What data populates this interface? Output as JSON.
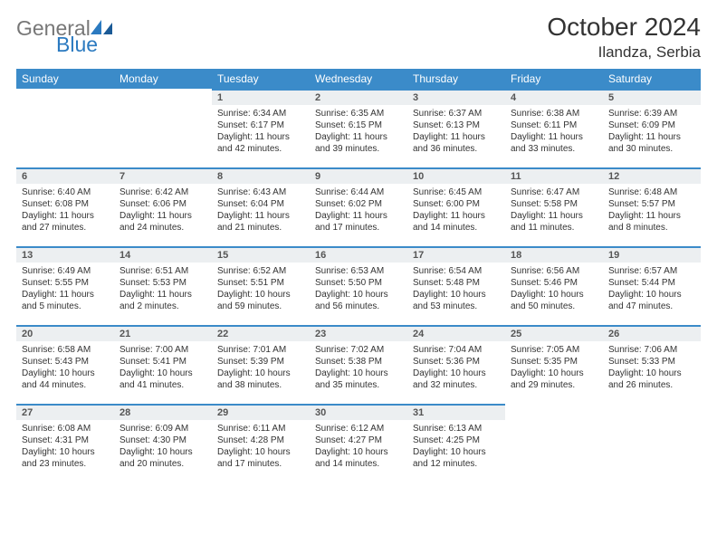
{
  "brand": {
    "word1": "General",
    "word2": "Blue",
    "word1_color": "#777777",
    "word2_color": "#2b7ac0"
  },
  "title": {
    "month_year": "October 2024",
    "location": "Ilandza, Serbia"
  },
  "colors": {
    "header_bg": "#3b8bc9",
    "daynum_bg": "#eceff1",
    "border": "#3b8bc9",
    "text": "#333333"
  },
  "day_names": [
    "Sunday",
    "Monday",
    "Tuesday",
    "Wednesday",
    "Thursday",
    "Friday",
    "Saturday"
  ],
  "weeks": [
    [
      {
        "num": "",
        "sunrise": "",
        "sunset": "",
        "daylight": ""
      },
      {
        "num": "",
        "sunrise": "",
        "sunset": "",
        "daylight": ""
      },
      {
        "num": "1",
        "sunrise": "Sunrise: 6:34 AM",
        "sunset": "Sunset: 6:17 PM",
        "daylight": "Daylight: 11 hours and 42 minutes."
      },
      {
        "num": "2",
        "sunrise": "Sunrise: 6:35 AM",
        "sunset": "Sunset: 6:15 PM",
        "daylight": "Daylight: 11 hours and 39 minutes."
      },
      {
        "num": "3",
        "sunrise": "Sunrise: 6:37 AM",
        "sunset": "Sunset: 6:13 PM",
        "daylight": "Daylight: 11 hours and 36 minutes."
      },
      {
        "num": "4",
        "sunrise": "Sunrise: 6:38 AM",
        "sunset": "Sunset: 6:11 PM",
        "daylight": "Daylight: 11 hours and 33 minutes."
      },
      {
        "num": "5",
        "sunrise": "Sunrise: 6:39 AM",
        "sunset": "Sunset: 6:09 PM",
        "daylight": "Daylight: 11 hours and 30 minutes."
      }
    ],
    [
      {
        "num": "6",
        "sunrise": "Sunrise: 6:40 AM",
        "sunset": "Sunset: 6:08 PM",
        "daylight": "Daylight: 11 hours and 27 minutes."
      },
      {
        "num": "7",
        "sunrise": "Sunrise: 6:42 AM",
        "sunset": "Sunset: 6:06 PM",
        "daylight": "Daylight: 11 hours and 24 minutes."
      },
      {
        "num": "8",
        "sunrise": "Sunrise: 6:43 AM",
        "sunset": "Sunset: 6:04 PM",
        "daylight": "Daylight: 11 hours and 21 minutes."
      },
      {
        "num": "9",
        "sunrise": "Sunrise: 6:44 AM",
        "sunset": "Sunset: 6:02 PM",
        "daylight": "Daylight: 11 hours and 17 minutes."
      },
      {
        "num": "10",
        "sunrise": "Sunrise: 6:45 AM",
        "sunset": "Sunset: 6:00 PM",
        "daylight": "Daylight: 11 hours and 14 minutes."
      },
      {
        "num": "11",
        "sunrise": "Sunrise: 6:47 AM",
        "sunset": "Sunset: 5:58 PM",
        "daylight": "Daylight: 11 hours and 11 minutes."
      },
      {
        "num": "12",
        "sunrise": "Sunrise: 6:48 AM",
        "sunset": "Sunset: 5:57 PM",
        "daylight": "Daylight: 11 hours and 8 minutes."
      }
    ],
    [
      {
        "num": "13",
        "sunrise": "Sunrise: 6:49 AM",
        "sunset": "Sunset: 5:55 PM",
        "daylight": "Daylight: 11 hours and 5 minutes."
      },
      {
        "num": "14",
        "sunrise": "Sunrise: 6:51 AM",
        "sunset": "Sunset: 5:53 PM",
        "daylight": "Daylight: 11 hours and 2 minutes."
      },
      {
        "num": "15",
        "sunrise": "Sunrise: 6:52 AM",
        "sunset": "Sunset: 5:51 PM",
        "daylight": "Daylight: 10 hours and 59 minutes."
      },
      {
        "num": "16",
        "sunrise": "Sunrise: 6:53 AM",
        "sunset": "Sunset: 5:50 PM",
        "daylight": "Daylight: 10 hours and 56 minutes."
      },
      {
        "num": "17",
        "sunrise": "Sunrise: 6:54 AM",
        "sunset": "Sunset: 5:48 PM",
        "daylight": "Daylight: 10 hours and 53 minutes."
      },
      {
        "num": "18",
        "sunrise": "Sunrise: 6:56 AM",
        "sunset": "Sunset: 5:46 PM",
        "daylight": "Daylight: 10 hours and 50 minutes."
      },
      {
        "num": "19",
        "sunrise": "Sunrise: 6:57 AM",
        "sunset": "Sunset: 5:44 PM",
        "daylight": "Daylight: 10 hours and 47 minutes."
      }
    ],
    [
      {
        "num": "20",
        "sunrise": "Sunrise: 6:58 AM",
        "sunset": "Sunset: 5:43 PM",
        "daylight": "Daylight: 10 hours and 44 minutes."
      },
      {
        "num": "21",
        "sunrise": "Sunrise: 7:00 AM",
        "sunset": "Sunset: 5:41 PM",
        "daylight": "Daylight: 10 hours and 41 minutes."
      },
      {
        "num": "22",
        "sunrise": "Sunrise: 7:01 AM",
        "sunset": "Sunset: 5:39 PM",
        "daylight": "Daylight: 10 hours and 38 minutes."
      },
      {
        "num": "23",
        "sunrise": "Sunrise: 7:02 AM",
        "sunset": "Sunset: 5:38 PM",
        "daylight": "Daylight: 10 hours and 35 minutes."
      },
      {
        "num": "24",
        "sunrise": "Sunrise: 7:04 AM",
        "sunset": "Sunset: 5:36 PM",
        "daylight": "Daylight: 10 hours and 32 minutes."
      },
      {
        "num": "25",
        "sunrise": "Sunrise: 7:05 AM",
        "sunset": "Sunset: 5:35 PM",
        "daylight": "Daylight: 10 hours and 29 minutes."
      },
      {
        "num": "26",
        "sunrise": "Sunrise: 7:06 AM",
        "sunset": "Sunset: 5:33 PM",
        "daylight": "Daylight: 10 hours and 26 minutes."
      }
    ],
    [
      {
        "num": "27",
        "sunrise": "Sunrise: 6:08 AM",
        "sunset": "Sunset: 4:31 PM",
        "daylight": "Daylight: 10 hours and 23 minutes."
      },
      {
        "num": "28",
        "sunrise": "Sunrise: 6:09 AM",
        "sunset": "Sunset: 4:30 PM",
        "daylight": "Daylight: 10 hours and 20 minutes."
      },
      {
        "num": "29",
        "sunrise": "Sunrise: 6:11 AM",
        "sunset": "Sunset: 4:28 PM",
        "daylight": "Daylight: 10 hours and 17 minutes."
      },
      {
        "num": "30",
        "sunrise": "Sunrise: 6:12 AM",
        "sunset": "Sunset: 4:27 PM",
        "daylight": "Daylight: 10 hours and 14 minutes."
      },
      {
        "num": "31",
        "sunrise": "Sunrise: 6:13 AM",
        "sunset": "Sunset: 4:25 PM",
        "daylight": "Daylight: 10 hours and 12 minutes."
      },
      {
        "num": "",
        "sunrise": "",
        "sunset": "",
        "daylight": ""
      },
      {
        "num": "",
        "sunrise": "",
        "sunset": "",
        "daylight": ""
      }
    ]
  ]
}
